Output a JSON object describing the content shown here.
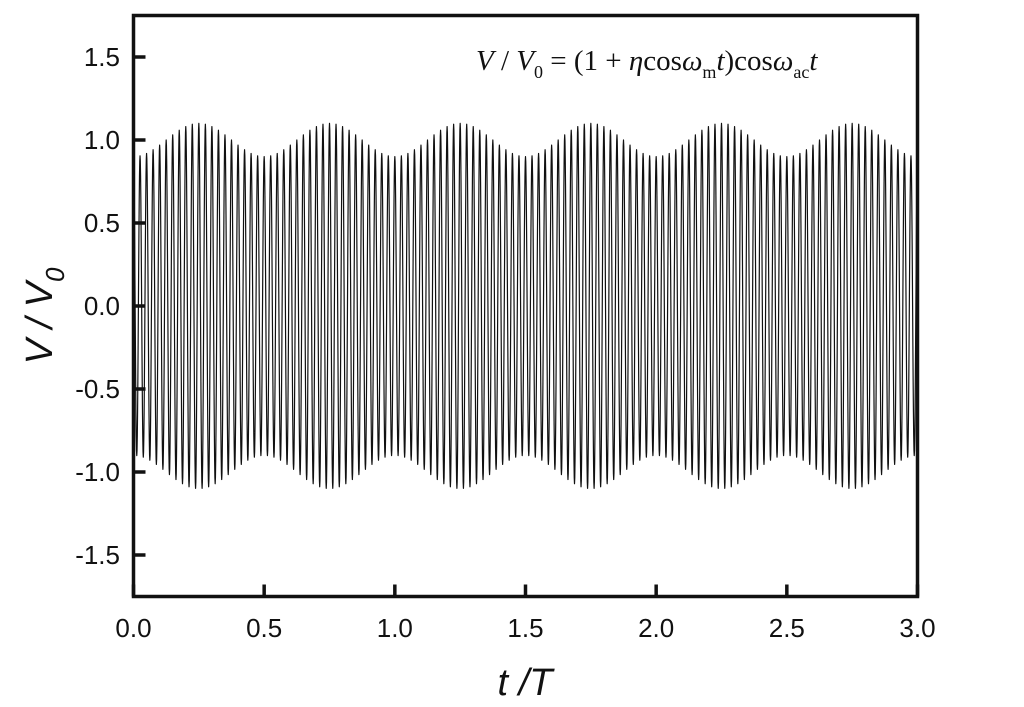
{
  "chart_data": {
    "type": "line",
    "title": "",
    "annotation": {
      "lhs": "V",
      "slash": " / ",
      "lhs_den": "V",
      "lhs_den_sub": "0",
      "equals": " = (1 + ",
      "eta": "η",
      "cos1": "cos",
      "omega1": "ω",
      "omega1_sub": "m",
      "t1": "t",
      "close": ")",
      "cos2": "cos",
      "omega2": "ω",
      "omega2_sub": "ac",
      "t2": "t"
    },
    "xlabel": "t /T",
    "ylabel": {
      "main": "V / V",
      "sub": "0"
    },
    "xlim": [
      0.0,
      3.0
    ],
    "ylim": [
      -1.75,
      1.75
    ],
    "x_ticks": [
      "0.0",
      "0.5",
      "1.0",
      "1.5",
      "2.0",
      "2.5",
      "3.0"
    ],
    "y_ticks": [
      "1.5",
      "1.0",
      "0.5",
      "0.0",
      "-0.5",
      "-1.0",
      "-1.5"
    ],
    "grid": false,
    "series": [
      {
        "formula": "V/V0 = (1 + eta*cos(omega_m*t))*cos(omega_ac*t)",
        "eta": 0.1,
        "modulation_periods_per_T": 2,
        "carrier_cycles_per_T": 40,
        "modulation_phase": 3.14159,
        "t_start": 0.0,
        "t_end": 3.0,
        "color": "#111111"
      }
    ]
  }
}
